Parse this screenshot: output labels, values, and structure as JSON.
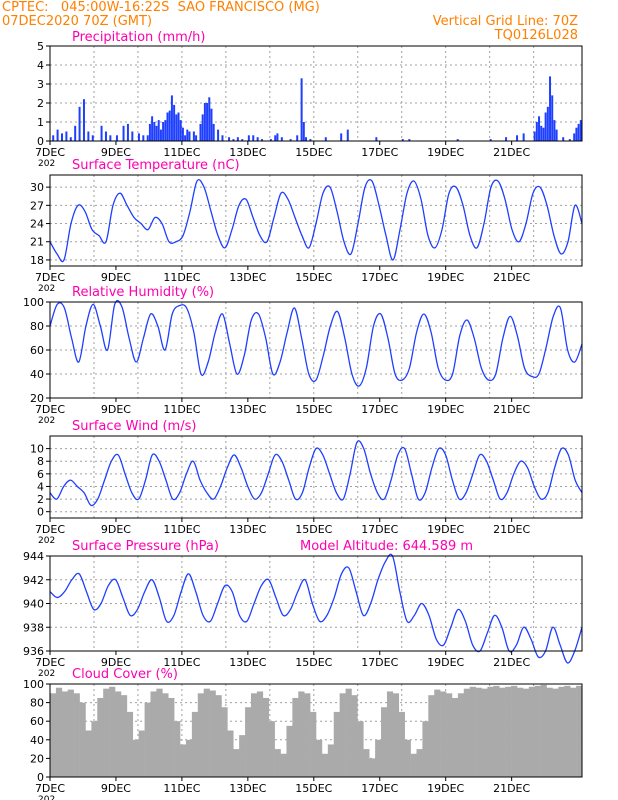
{
  "header": {
    "line1_left": "CPTEC:   045:00W-16:22S  SAO FRANCISCO (MG)",
    "line2_left": "07DEC2020 70Z (GMT)",
    "line2_right": "Vertical Grid Line: 70Z",
    "line3_right": "TQ0126L028"
  },
  "colors": {
    "header": "#ff8000",
    "title": "#ff00b0",
    "series": "#1f3fff",
    "cloud": "#aaaaaa",
    "grid": "#a0a0a0",
    "axis": "#000000"
  },
  "x_tick_labels": [
    "7DEC",
    "9DEC",
    "11DEC",
    "13DEC",
    "15DEC",
    "17DEC",
    "19DEC",
    "21DEC"
  ],
  "x_tick_sublabel": "202",
  "chart_data": [
    {
      "type": "bar",
      "title": "Precipitation (mm/h)",
      "ylim": [
        0,
        5
      ],
      "yticks": [
        0,
        1,
        2,
        3,
        4,
        5
      ],
      "grid": true,
      "points": [
        [
          0.1,
          0.3
        ],
        [
          0.3,
          0.6
        ],
        [
          0.5,
          0.4
        ],
        [
          0.7,
          0.5
        ],
        [
          0.9,
          0.2
        ],
        [
          1.1,
          0.8
        ],
        [
          1.3,
          1.8
        ],
        [
          1.5,
          2.2
        ],
        [
          1.7,
          0.5
        ],
        [
          1.9,
          0.3
        ],
        [
          2.3,
          0.8
        ],
        [
          2.5,
          0.5
        ],
        [
          2.7,
          0.3
        ],
        [
          3.0,
          0.3
        ],
        [
          3.3,
          0.8
        ],
        [
          3.5,
          0.9
        ],
        [
          3.7,
          0.5
        ],
        [
          4.0,
          0.4
        ],
        [
          4.2,
          0.3
        ],
        [
          4.4,
          0.3
        ],
        [
          4.5,
          0.9
        ],
        [
          4.6,
          1.3
        ],
        [
          4.7,
          1.0
        ],
        [
          4.8,
          0.8
        ],
        [
          4.9,
          1.1
        ],
        [
          5.0,
          0.6
        ],
        [
          5.1,
          1.0
        ],
        [
          5.2,
          1.1
        ],
        [
          5.3,
          1.5
        ],
        [
          5.4,
          1.6
        ],
        [
          5.5,
          2.4
        ],
        [
          5.6,
          1.9
        ],
        [
          5.7,
          1.4
        ],
        [
          5.8,
          1.5
        ],
        [
          5.9,
          1.1
        ],
        [
          6.0,
          0.7
        ],
        [
          6.1,
          0.3
        ],
        [
          6.2,
          0.6
        ],
        [
          6.3,
          0.5
        ],
        [
          6.5,
          0.5
        ],
        [
          6.6,
          0.3
        ],
        [
          6.8,
          0.9
        ],
        [
          6.9,
          1.4
        ],
        [
          7.0,
          2.0
        ],
        [
          7.1,
          2.0
        ],
        [
          7.2,
          2.3
        ],
        [
          7.3,
          1.7
        ],
        [
          7.4,
          0.9
        ],
        [
          7.6,
          0.6
        ],
        [
          7.8,
          0.3
        ],
        [
          8.1,
          0.2
        ],
        [
          8.3,
          0.1
        ],
        [
          8.5,
          0.2
        ],
        [
          8.7,
          0.1
        ],
        [
          9.0,
          0.3
        ],
        [
          9.2,
          0.3
        ],
        [
          9.4,
          0.2
        ],
        [
          9.6,
          0.1
        ],
        [
          10.0,
          0.1
        ],
        [
          10.2,
          0.3
        ],
        [
          10.3,
          0.4
        ],
        [
          10.5,
          0.2
        ],
        [
          10.9,
          0.1
        ],
        [
          11.2,
          0.3
        ],
        [
          11.4,
          3.3
        ],
        [
          11.5,
          1.0
        ],
        [
          11.6,
          0.2
        ],
        [
          11.8,
          0.1
        ],
        [
          12.5,
          0.2
        ],
        [
          13.2,
          0.4
        ],
        [
          13.5,
          0.6
        ],
        [
          14.8,
          0.2
        ],
        [
          16.0,
          0.1
        ],
        [
          16.3,
          0.1
        ],
        [
          18.5,
          0.1
        ],
        [
          20.0,
          0.1
        ],
        [
          20.7,
          0.2
        ],
        [
          21.2,
          0.3
        ],
        [
          21.5,
          0.4
        ],
        [
          22.0,
          0.5
        ],
        [
          22.1,
          1.0
        ],
        [
          22.2,
          1.3
        ],
        [
          22.3,
          0.8
        ],
        [
          22.4,
          0.7
        ],
        [
          22.5,
          1.5
        ],
        [
          22.6,
          1.8
        ],
        [
          22.7,
          3.4
        ],
        [
          22.8,
          2.4
        ],
        [
          22.9,
          1.1
        ],
        [
          23.0,
          0.6
        ],
        [
          23.3,
          0.2
        ],
        [
          23.6,
          0.1
        ],
        [
          23.8,
          0.4
        ],
        [
          23.9,
          0.7
        ],
        [
          24.0,
          0.9
        ],
        [
          24.1,
          1.1
        ]
      ]
    },
    {
      "type": "line",
      "title": "Surface Temperature (nC)",
      "ylim": [
        17,
        32
      ],
      "yticks": [
        18,
        21,
        24,
        27,
        30
      ],
      "grid": true,
      "values": [
        21,
        19,
        18,
        24,
        27,
        26,
        23,
        22,
        21,
        27,
        29,
        27,
        25,
        24,
        23,
        25,
        24,
        21,
        21,
        22,
        26,
        31,
        30,
        26,
        22,
        20,
        23,
        27,
        28,
        25,
        22,
        21,
        25,
        29,
        28,
        25,
        22,
        20,
        24,
        29,
        30,
        26,
        21,
        19,
        24,
        30,
        31,
        27,
        22,
        18,
        23,
        29,
        31,
        28,
        22,
        20,
        23,
        29,
        30,
        27,
        22,
        20,
        24,
        30,
        31,
        28,
        23,
        21,
        24,
        29,
        30,
        27,
        22,
        19,
        21,
        27,
        24
      ]
    },
    {
      "type": "line",
      "title": "Relative Humidity (%)",
      "ylim": [
        20,
        100
      ],
      "yticks": [
        20,
        40,
        60,
        80,
        100
      ],
      "grid": true,
      "values": [
        80,
        98,
        95,
        70,
        50,
        80,
        98,
        80,
        60,
        98,
        96,
        70,
        50,
        70,
        90,
        80,
        60,
        90,
        97,
        95,
        75,
        40,
        50,
        75,
        90,
        65,
        40,
        55,
        85,
        90,
        70,
        40,
        50,
        75,
        95,
        70,
        40,
        35,
        55,
        80,
        92,
        70,
        40,
        30,
        45,
        80,
        90,
        70,
        40,
        35,
        45,
        75,
        90,
        75,
        45,
        35,
        40,
        72,
        85,
        70,
        45,
        35,
        40,
        70,
        88,
        72,
        45,
        38,
        40,
        62,
        88,
        95,
        60,
        50,
        65
      ]
    },
    {
      "type": "line",
      "title": "Surface Wind (m/s)",
      "ylim": [
        -1,
        12
      ],
      "yticks": [
        0,
        2,
        4,
        6,
        8,
        10
      ],
      "grid": true,
      "values": [
        3,
        2,
        4,
        5,
        4,
        3,
        1,
        2,
        5,
        8,
        9,
        6,
        3,
        2,
        5,
        9,
        8,
        5,
        2,
        3,
        6,
        8,
        5,
        3,
        2,
        4,
        7,
        9,
        7,
        4,
        2,
        3,
        6,
        9,
        8,
        5,
        2,
        3,
        7,
        10,
        9,
        6,
        3,
        2,
        6,
        11,
        10,
        6,
        3,
        2,
        5,
        9,
        10,
        6,
        2,
        3,
        7,
        10,
        9,
        5,
        2,
        3,
        6,
        9,
        8,
        5,
        2,
        3,
        6,
        8,
        7,
        4,
        2,
        3,
        7,
        10,
        9,
        5,
        3
      ]
    },
    {
      "type": "line",
      "title": "Surface Pressure (hPa)",
      "annotation": "Model Altitude: 644.589 m",
      "ylim": [
        936,
        944
      ],
      "yticks": [
        936,
        938,
        940,
        942,
        944
      ],
      "grid": true,
      "values": [
        941,
        940.5,
        941,
        942,
        942.5,
        941,
        939.5,
        940,
        941.5,
        942,
        940.5,
        939,
        939.5,
        941,
        942,
        940.5,
        938.5,
        939,
        941,
        942.5,
        941,
        939,
        938.5,
        940,
        941.5,
        941,
        939,
        938.5,
        940,
        941.5,
        942,
        940.5,
        939,
        939.5,
        941,
        942,
        940,
        938.5,
        939,
        940.5,
        942.5,
        943,
        941,
        939,
        940,
        942,
        943.5,
        944,
        941,
        938.5,
        939,
        940,
        939,
        937,
        936.5,
        938,
        939.5,
        938.5,
        936.5,
        936,
        937.5,
        939,
        938,
        936,
        936.5,
        938,
        937,
        935.5,
        936,
        938,
        936.5,
        935,
        936,
        938
      ]
    },
    {
      "type": "bar",
      "title": "Cloud Cover (%)",
      "ylim": [
        0,
        100
      ],
      "yticks": [
        0,
        20,
        40,
        60,
        80,
        100
      ],
      "grid": true,
      "values": [
        90,
        96,
        92,
        94,
        90,
        80,
        50,
        60,
        85,
        95,
        97,
        92,
        88,
        70,
        40,
        50,
        80,
        92,
        95,
        90,
        85,
        60,
        35,
        40,
        70,
        90,
        95,
        93,
        88,
        75,
        50,
        30,
        45,
        75,
        90,
        92,
        85,
        60,
        30,
        25,
        55,
        85,
        92,
        90,
        70,
        40,
        25,
        35,
        70,
        90,
        95,
        88,
        60,
        30,
        20,
        40,
        75,
        92,
        90,
        70,
        40,
        25,
        30,
        60,
        88,
        94,
        92,
        90,
        85,
        90,
        95,
        97,
        96,
        95,
        97,
        98,
        96,
        97,
        98,
        96,
        95,
        97,
        98,
        99,
        96,
        95,
        97,
        98,
        96,
        98
      ]
    }
  ]
}
